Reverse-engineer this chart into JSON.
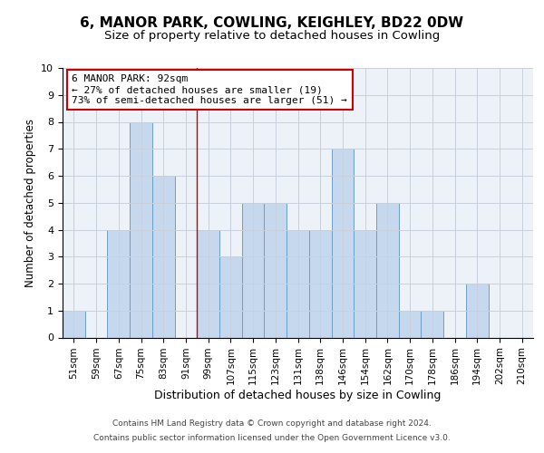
{
  "title1": "6, MANOR PARK, COWLING, KEIGHLEY, BD22 0DW",
  "title2": "Size of property relative to detached houses in Cowling",
  "xlabel": "Distribution of detached houses by size in Cowling",
  "ylabel": "Number of detached properties",
  "categories": [
    "51sqm",
    "59sqm",
    "67sqm",
    "75sqm",
    "83sqm",
    "91sqm",
    "99sqm",
    "107sqm",
    "115sqm",
    "123sqm",
    "131sqm",
    "138sqm",
    "146sqm",
    "154sqm",
    "162sqm",
    "170sqm",
    "178sqm",
    "186sqm",
    "194sqm",
    "202sqm",
    "210sqm"
  ],
  "values": [
    1,
    0,
    4,
    8,
    6,
    0,
    4,
    3,
    5,
    5,
    4,
    4,
    7,
    4,
    5,
    1,
    1,
    0,
    2,
    0,
    0
  ],
  "bar_color": "#c5d8ee",
  "bar_edge_color": "#6b9ec8",
  "vline_x": 5.5,
  "vline_color": "#cc0000",
  "annotation_text": "6 MANOR PARK: 92sqm\n← 27% of detached houses are smaller (19)\n73% of semi-detached houses are larger (51) →",
  "annotation_box_color": "white",
  "annotation_box_edge_color": "#cc0000",
  "ylim": [
    0,
    10
  ],
  "yticks": [
    0,
    1,
    2,
    3,
    4,
    5,
    6,
    7,
    8,
    9,
    10
  ],
  "grid_color": "#c8d0dc",
  "background_color": "#edf2f9",
  "footer1": "Contains HM Land Registry data © Crown copyright and database right 2024.",
  "footer2": "Contains public sector information licensed under the Open Government Licence v3.0.",
  "title1_fontsize": 11,
  "title2_fontsize": 9.5,
  "tick_fontsize": 7.5,
  "xlabel_fontsize": 9,
  "ylabel_fontsize": 8.5,
  "annotation_fontsize": 8,
  "footer_fontsize": 6.5
}
